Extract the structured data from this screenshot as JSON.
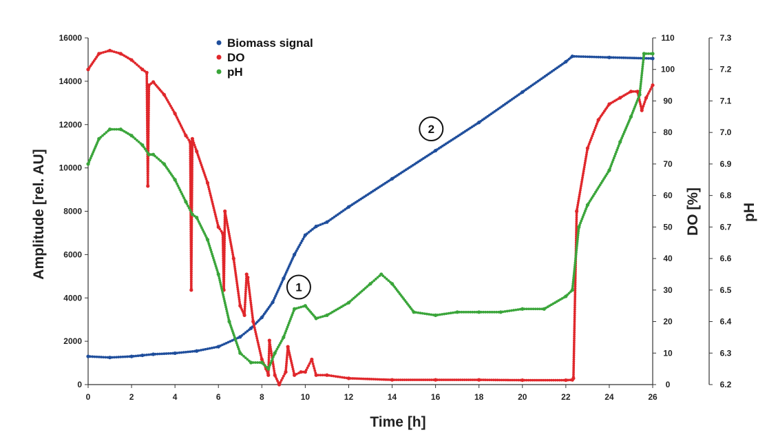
{
  "chart_data": {
    "type": "scatter",
    "xlabel": "Time [h]",
    "ylabel_left": "Amplitude [rel. AU]",
    "ylabel_right1": "DO [%]",
    "ylabel_right2": "pH",
    "xlim": [
      0,
      26
    ],
    "xticks": [
      "0",
      "2",
      "4",
      "6",
      "8",
      "10",
      "12",
      "14",
      "16",
      "18",
      "20",
      "22",
      "24",
      "26"
    ],
    "ylim_left": [
      0,
      16000
    ],
    "yticks_left": [
      "0",
      "2000",
      "4000",
      "6000",
      "8000",
      "10000",
      "12000",
      "14000",
      "16000"
    ],
    "ylim_right1": [
      0,
      110
    ],
    "yticks_right1": [
      "0",
      "10",
      "20",
      "30",
      "40",
      "50",
      "60",
      "70",
      "80",
      "90",
      "100",
      "110"
    ],
    "ylim_right2": [
      6.2,
      7.3
    ],
    "yticks_right2": [
      "6.2",
      "6.3",
      "6.4",
      "6.5",
      "6.6",
      "6.7",
      "6.8",
      "6.9",
      "7.0",
      "7.1",
      "7.2",
      "7.3"
    ],
    "legend_position": "top-center",
    "grid": false,
    "series": [
      {
        "name": "Biomass signal",
        "color": "#1f4e9c",
        "axis": "left",
        "x": [
          0,
          1,
          2,
          2.5,
          3,
          4,
          5,
          6,
          7,
          7.5,
          8,
          8.5,
          9,
          9.5,
          10,
          10.5,
          11,
          12,
          14,
          16,
          18,
          20,
          22,
          22.3,
          24,
          26
        ],
        "y": [
          1300,
          1250,
          1300,
          1350,
          1400,
          1450,
          1550,
          1750,
          2200,
          2600,
          3100,
          3800,
          4900,
          6000,
          6900,
          7300,
          7500,
          8200,
          9500,
          10800,
          12100,
          13500,
          14900,
          15150,
          15100,
          15050
        ]
      },
      {
        "name": "DO",
        "color": "#e0272b",
        "axis": "right1",
        "x": [
          0,
          0.5,
          1,
          1.5,
          2,
          2.5,
          2.7,
          2.75,
          2.8,
          3,
          3.5,
          4,
          4.5,
          4.7,
          4.75,
          4.8,
          5,
          5.5,
          6,
          6.2,
          6.25,
          6.3,
          6.7,
          7,
          7.2,
          7.3,
          7.35,
          7.6,
          8,
          8.2,
          8.3,
          8.35,
          8.6,
          8.8,
          9.1,
          9.2,
          9.5,
          9.8,
          10,
          10.3,
          10.5,
          11,
          12,
          14,
          16,
          18,
          20,
          22,
          22.3,
          22.35,
          22.5,
          23,
          23.5,
          24,
          24.5,
          25,
          25.3,
          25.5,
          25.7,
          26
        ],
        "y": [
          100,
          105,
          106,
          105,
          103,
          100,
          99,
          63,
          95,
          96,
          92,
          86,
          79,
          77,
          30,
          78,
          74,
          64,
          50,
          48,
          30,
          55,
          40,
          25,
          22,
          35,
          34,
          20,
          8,
          5,
          3,
          14,
          3,
          0,
          4,
          12,
          3,
          4,
          4,
          8,
          3,
          3,
          2,
          1.5,
          1.5,
          1.5,
          1.4,
          1.4,
          1.5,
          2,
          55,
          75,
          84,
          89,
          91,
          93,
          93,
          87,
          91,
          95
        ]
      },
      {
        "name": "pH",
        "color": "#3aa53a",
        "axis": "right2",
        "x": [
          0,
          0.5,
          1,
          1.5,
          2,
          2.5,
          2.8,
          3,
          3.5,
          4,
          4.5,
          4.8,
          5,
          5.5,
          6,
          6.5,
          7,
          7.5,
          8,
          8.3,
          8.6,
          9,
          9.5,
          10,
          10.5,
          11,
          12,
          13,
          13.5,
          14,
          15,
          16,
          17,
          18,
          19,
          20,
          21,
          22,
          22.3,
          22.6,
          23,
          24,
          24.5,
          25,
          25.4,
          25.6,
          26
        ],
        "y": [
          6.9,
          6.98,
          7.01,
          7.01,
          6.99,
          6.96,
          6.93,
          6.93,
          6.9,
          6.85,
          6.78,
          6.74,
          6.73,
          6.66,
          6.55,
          6.4,
          6.3,
          6.27,
          6.27,
          6.25,
          6.3,
          6.35,
          6.44,
          6.45,
          6.41,
          6.42,
          6.46,
          6.52,
          6.55,
          6.52,
          6.43,
          6.42,
          6.43,
          6.43,
          6.43,
          6.44,
          6.44,
          6.48,
          6.5,
          6.7,
          6.77,
          6.88,
          6.97,
          7.05,
          7.12,
          7.25,
          7.25
        ]
      }
    ],
    "annotations": [
      {
        "label": "1",
        "x": 9.7,
        "y_left": 4500
      },
      {
        "label": "2",
        "x": 15.8,
        "y_left": 11800
      }
    ]
  }
}
